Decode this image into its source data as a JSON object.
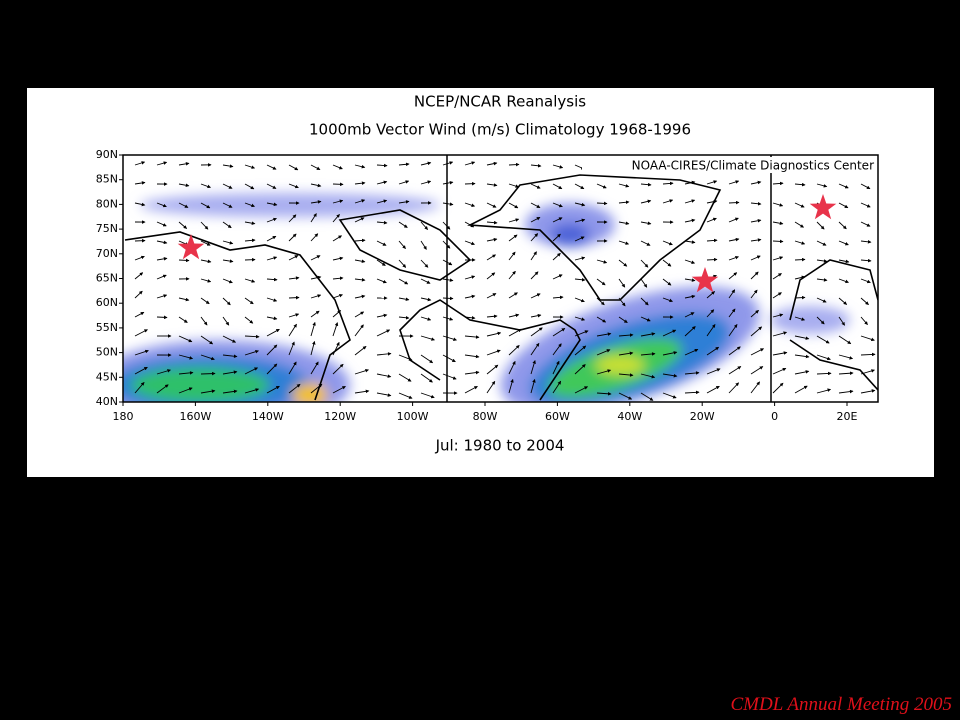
{
  "header": {
    "title": "NCEP/NCAR Reanalysis",
    "subtitle": "1000mb Vector Wind (m/s) Climatology 1968-1996"
  },
  "credit": "NOAA-CIRES/Climate Diagnostics Center",
  "lat_labels": [
    "90N",
    "85N",
    "80N",
    "75N",
    "70N",
    "65N",
    "60N",
    "55N",
    "50N",
    "45N",
    "40N"
  ],
  "lon_labels": [
    "180",
    "160W",
    "140W",
    "120W",
    "100W",
    "80W",
    "60W",
    "40W",
    "20W",
    "0",
    "20E"
  ],
  "period": "Jul: 1980 to 2004",
  "footer": "CMDL Annual Meeting 2005"
}
